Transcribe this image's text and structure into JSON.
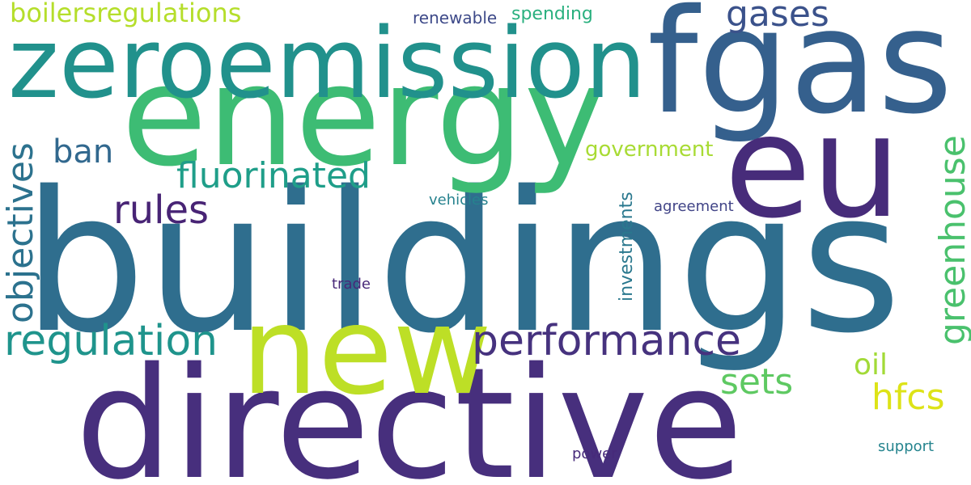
{
  "words": {
    "buildings": {
      "text": "buildings",
      "color": "#2f6e8e"
    },
    "directive": {
      "text": "directive",
      "color": "#472f7d"
    },
    "energy": {
      "text": "energy",
      "color": "#3dbc74"
    },
    "fgas": {
      "text": "fgas",
      "color": "#35608d"
    },
    "zeroemission": {
      "text": "zeroemission",
      "color": "#21918c"
    },
    "eu": {
      "text": "eu",
      "color": "#472c7a"
    },
    "new": {
      "text": "new",
      "color": "#bddf26"
    },
    "performance": {
      "text": "performance",
      "color": "#46327e"
    },
    "regulation": {
      "text": "regulation",
      "color": "#1f948c"
    },
    "fluorinated": {
      "text": "fluorinated",
      "color": "#1f9e89"
    },
    "rules": {
      "text": "rules",
      "color": "#482475"
    },
    "boilersregulations": {
      "text": "boilersregulations",
      "color": "#b5de2b"
    },
    "gases": {
      "text": "gases",
      "color": "#3b528b"
    },
    "ban": {
      "text": "ban",
      "color": "#31688e"
    },
    "sets": {
      "text": "sets",
      "color": "#5ec962"
    },
    "hfcs": {
      "text": "hfcs",
      "color": "#dde318"
    },
    "oil": {
      "text": "oil",
      "color": "#a2da37"
    },
    "government": {
      "text": "government",
      "color": "#a8db34"
    },
    "spending": {
      "text": "spending",
      "color": "#2ab07f"
    },
    "renewable": {
      "text": "renewable",
      "color": "#3e4a89"
    },
    "vehicles": {
      "text": "vehicles",
      "color": "#26828e"
    },
    "agreement": {
      "text": "agreement",
      "color": "#414487"
    },
    "trade": {
      "text": "trade",
      "color": "#482878"
    },
    "power": {
      "text": "power",
      "color": "#472a7a"
    },
    "support": {
      "text": "support",
      "color": "#25848e"
    },
    "objectives": {
      "text": "objectives",
      "color": "#2c728e"
    },
    "greenhouse": {
      "text": "greenhouse",
      "color": "#4ac16d"
    },
    "investments": {
      "text": "investments",
      "color": "#2a788e"
    }
  }
}
